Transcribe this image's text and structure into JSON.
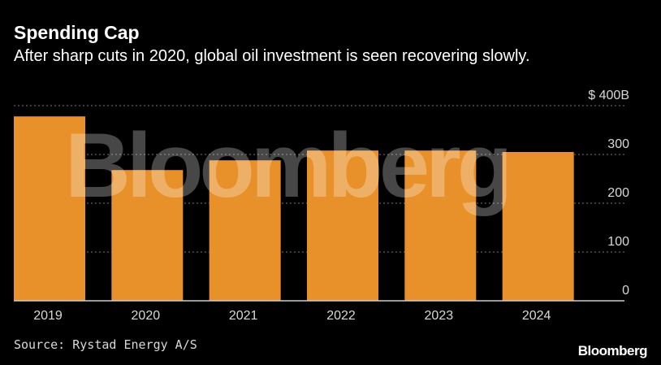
{
  "header": {
    "title": "Spending Cap",
    "subtitle": "After sharp cuts in 2020, global oil investment is seen recovering slowly."
  },
  "footer": {
    "source": "Source: Rystad Energy A/S",
    "brand": "Bloomberg"
  },
  "watermark": "Bloomberg",
  "colors": {
    "background": "#000000",
    "bar": "#e8912b",
    "grid": "#777777",
    "axis_text": "#d8d8d8"
  },
  "chart_data": {
    "type": "bar",
    "title": "Spending Cap",
    "subtitle": "After sharp cuts in 2020, global oil investment is seen recovering slowly.",
    "xlabel": "",
    "ylabel": "",
    "categories": [
      "2019",
      "2020",
      "2021",
      "2022",
      "2023",
      "2024"
    ],
    "values": [
      378,
      268,
      288,
      308,
      308,
      305
    ],
    "ylim": [
      0,
      400
    ],
    "yticks": [
      0,
      100,
      200,
      300,
      400
    ],
    "ytick_labels": [
      "0",
      "100",
      "200",
      "300",
      "$ 400B"
    ],
    "grid": true,
    "y_axis_position": "right"
  }
}
